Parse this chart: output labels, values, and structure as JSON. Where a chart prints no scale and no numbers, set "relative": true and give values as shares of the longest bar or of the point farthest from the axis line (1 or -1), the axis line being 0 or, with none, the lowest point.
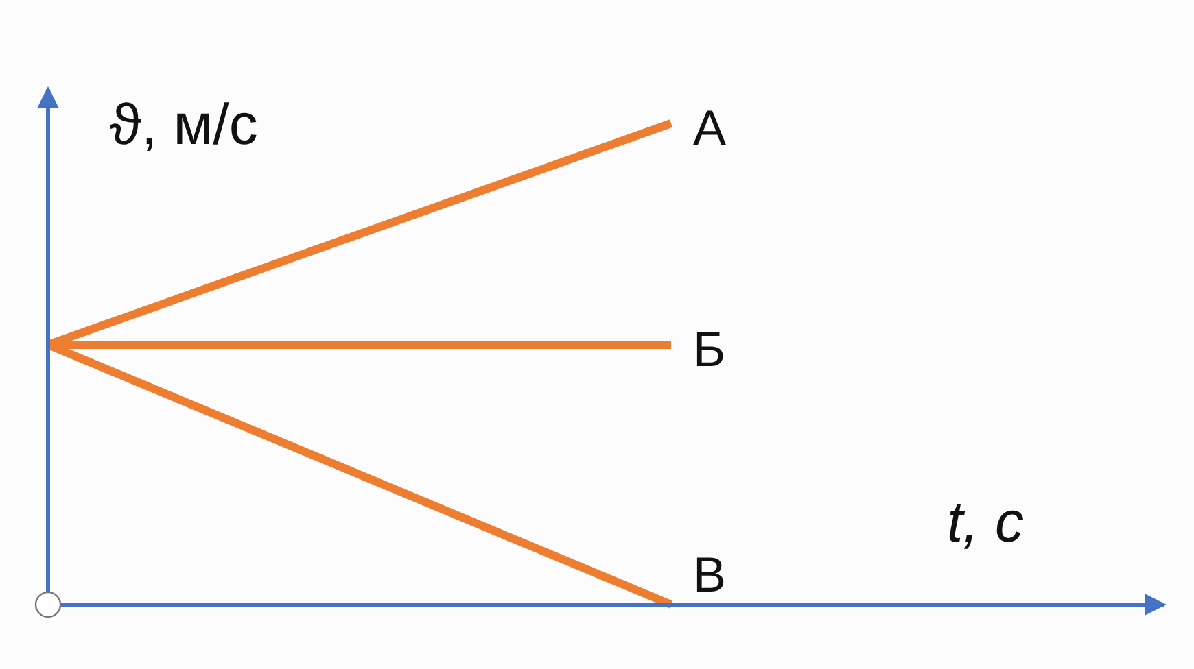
{
  "chart_data": {
    "type": "line",
    "xlabel": "t, с",
    "ylabel": "ϑ, м/с",
    "categories": [
      null,
      null
    ],
    "relative": true,
    "marker": "none",
    "line_style": "solid",
    "series": [
      {
        "name": "А",
        "color": "#ed7d31",
        "values": [
          0.54,
          1
        ]
      },
      {
        "name": "Б",
        "color": "#ed7d31",
        "values": [
          0.54,
          0.54
        ]
      },
      {
        "name": "В",
        "color": "#ed7d31",
        "values": [
          0.54,
          0
        ]
      }
    ]
  }
}
